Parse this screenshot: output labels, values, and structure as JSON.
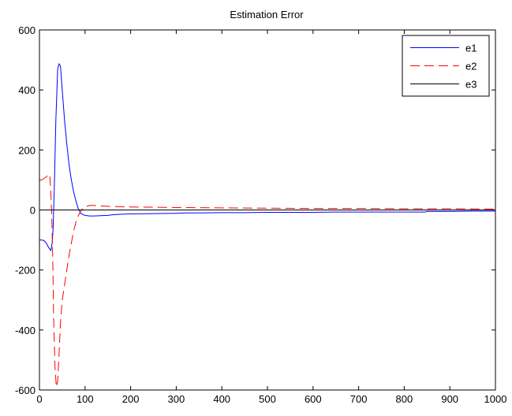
{
  "chart_data": {
    "type": "line",
    "title": "Estimation Error",
    "xlabel": "",
    "ylabel": "",
    "xlim": [
      0,
      1000
    ],
    "ylim": [
      -600,
      600
    ],
    "xticks": [
      0,
      100,
      200,
      300,
      400,
      500,
      600,
      700,
      800,
      900,
      1000
    ],
    "yticks": [
      -600,
      -400,
      -200,
      0,
      200,
      400,
      600
    ],
    "grid": false,
    "legend_position": "top-right",
    "series": [
      {
        "name": "e1",
        "color": "#0000ff",
        "style": "solid",
        "x": [
          0,
          5,
          10,
          15,
          20,
          25,
          28,
          30,
          33,
          36,
          40,
          43,
          46,
          50,
          55,
          60,
          65,
          70,
          75,
          80,
          85,
          90,
          95,
          100,
          110,
          120,
          150,
          160,
          180,
          200,
          250,
          300,
          320,
          350,
          400,
          450,
          500,
          550,
          600,
          650,
          700,
          750,
          800,
          845,
          850,
          900,
          950,
          1000
        ],
        "y": [
          -100,
          -100,
          -102,
          -110,
          -125,
          -135,
          -110,
          -60,
          100,
          300,
          470,
          487,
          480,
          400,
          300,
          220,
          150,
          100,
          60,
          30,
          5,
          -10,
          -15,
          -18,
          -20,
          -20,
          -18,
          -16,
          -14,
          -13,
          -12,
          -11,
          -10,
          -10,
          -9,
          -9,
          -8,
          -8,
          -8,
          -7,
          -7,
          -7,
          -7,
          -7,
          -5,
          -5,
          -4,
          -4
        ]
      },
      {
        "name": "e2",
        "color": "#ff0000",
        "style": "dashed",
        "x": [
          0,
          5,
          10,
          15,
          20,
          23,
          25,
          27,
          29,
          31,
          34,
          37,
          40,
          43,
          46,
          50,
          55,
          60,
          65,
          70,
          75,
          80,
          85,
          90,
          95,
          100,
          110,
          120,
          150,
          200,
          300,
          400,
          500,
          600,
          700,
          800,
          900,
          1000
        ],
        "y": [
          100,
          100,
          105,
          110,
          120,
          110,
          60,
          -20,
          -150,
          -350,
          -520,
          -590,
          -570,
          -480,
          -380,
          -300,
          -250,
          -200,
          -150,
          -110,
          -70,
          -40,
          -20,
          -5,
          5,
          10,
          15,
          15,
          12,
          10,
          8,
          7,
          6,
          5,
          5,
          4,
          4,
          3
        ]
      },
      {
        "name": "e3",
        "color": "#000000",
        "style": "solid",
        "x": [
          0,
          1000
        ],
        "y": [
          0,
          0
        ]
      }
    ]
  }
}
